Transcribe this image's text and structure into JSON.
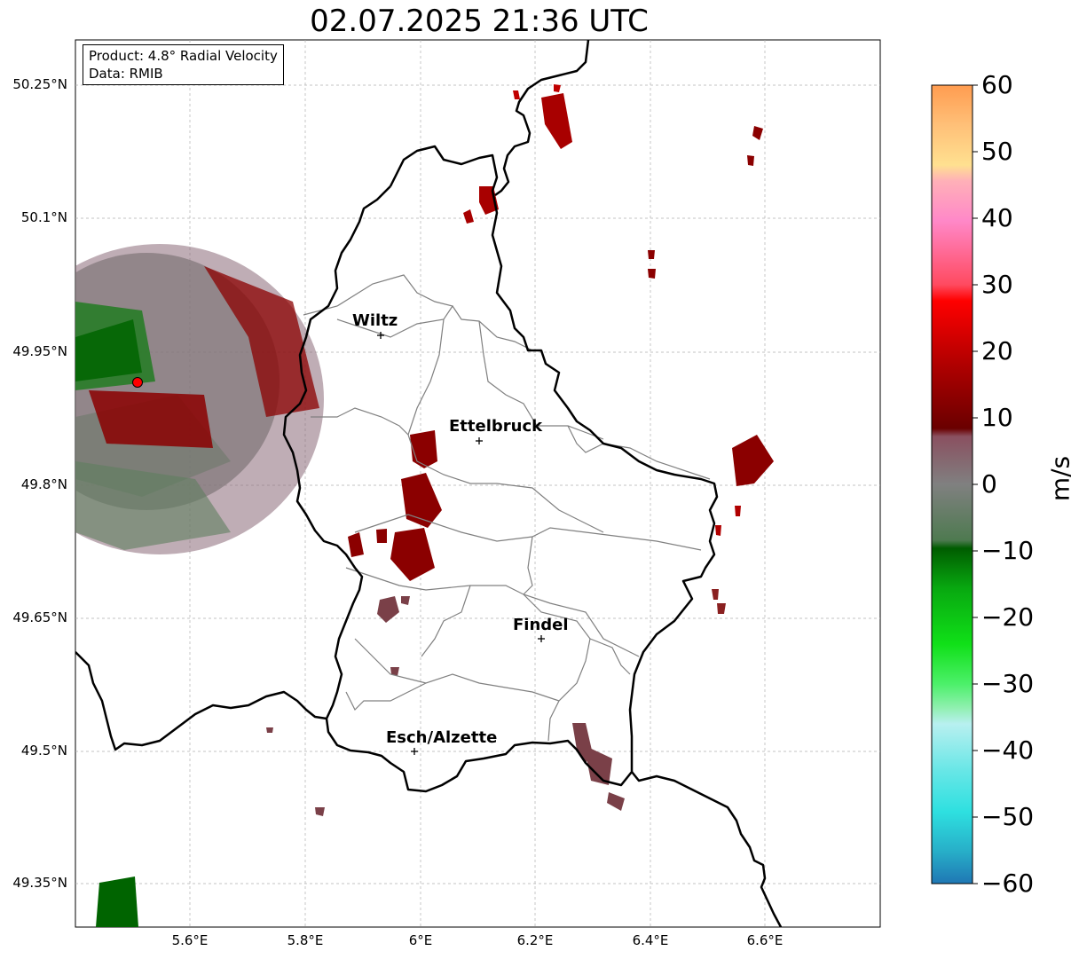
{
  "title": "02.07.2025 21:36 UTC",
  "info": {
    "product": "Product: 4.8° Radial Velocity",
    "data": "Data: RMIB"
  },
  "latitude_ticks": [
    "50.25°N",
    "50.1°N",
    "49.95°N",
    "49.8°N",
    "49.65°N",
    "49.5°N",
    "49.35°N"
  ],
  "longitude_ticks": [
    "5.6°E",
    "5.8°E",
    "6°E",
    "6.2°E",
    "6.4°E",
    "6.6°E"
  ],
  "cities": [
    {
      "name": "Wiltz"
    },
    {
      "name": "Ettelbruck"
    },
    {
      "name": "Findel"
    },
    {
      "name": "Esch/Alzette"
    }
  ],
  "colorbar": {
    "label": "m/s",
    "ticks": [
      "60",
      "50",
      "40",
      "30",
      "20",
      "10",
      "0",
      "−10",
      "−20",
      "−30",
      "−40",
      "−50",
      "−60"
    ],
    "min": -60,
    "max": 60
  },
  "radar_site_color": "#ff0000"
}
